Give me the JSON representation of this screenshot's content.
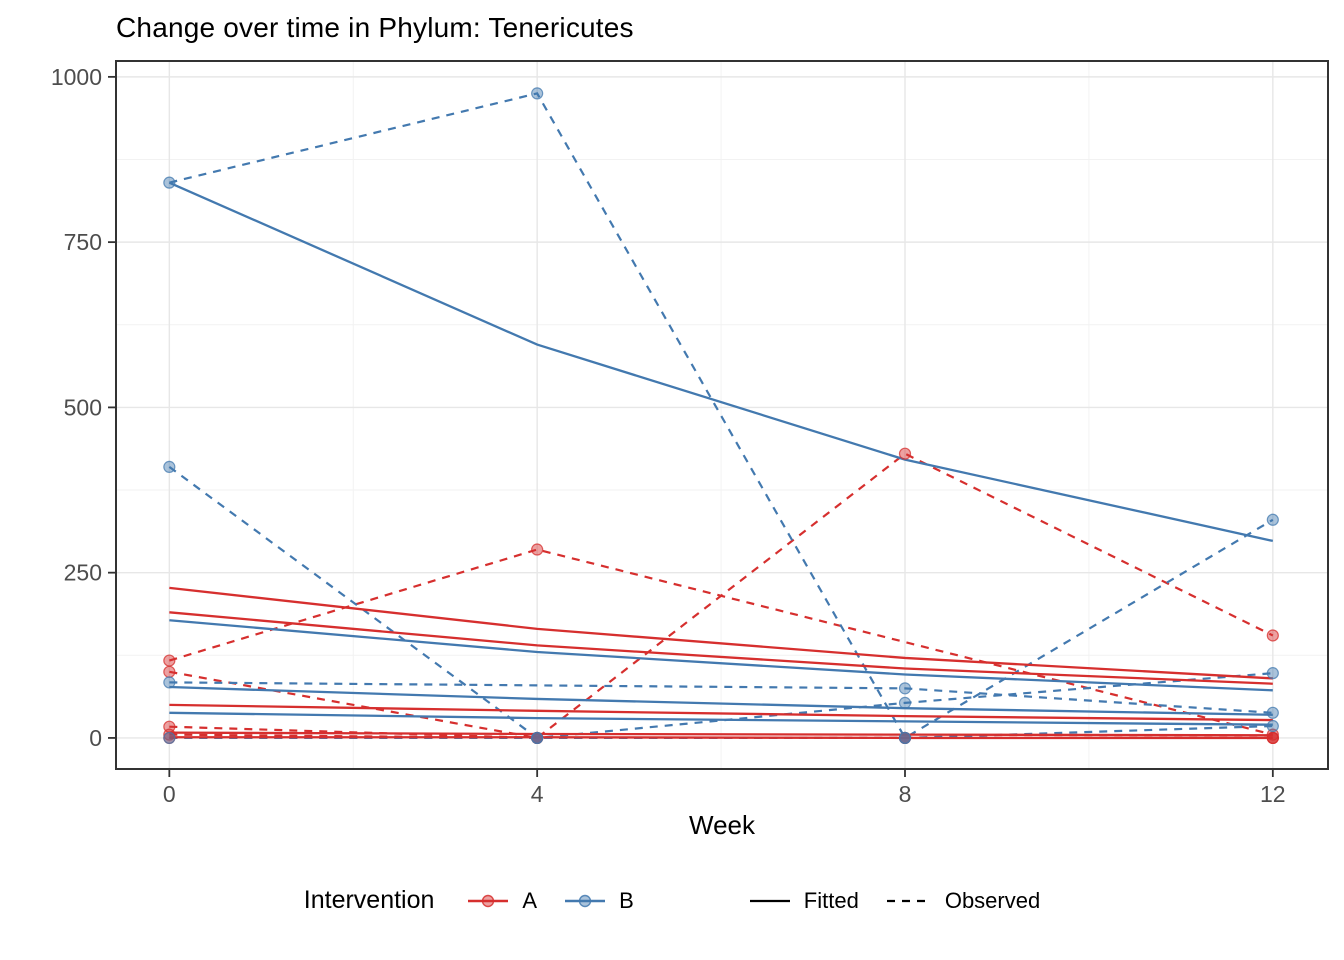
{
  "chart_data": {
    "type": "line",
    "title": "Change over time in Phylum: Tenericutes",
    "xlabel": "Week",
    "ylabel": "",
    "x_tick_values": [
      0,
      4,
      8,
      12
    ],
    "x_tick_labels": [
      "0",
      "4",
      "8",
      "12"
    ],
    "y_tick_values": [
      0,
      250,
      500,
      750,
      1000
    ],
    "y_tick_labels": [
      "0",
      "250",
      "500",
      "750",
      "1000"
    ],
    "x_minor_gridlines": [
      2,
      6,
      10
    ],
    "y_minor_gridlines": [
      125,
      375,
      625,
      875
    ],
    "xlim": [
      -0.58,
      12.6
    ],
    "ylim": [
      -47,
      1024
    ],
    "grid": true,
    "legend_position": "bottom",
    "colors": {
      "A": "#D62F2E",
      "B": "#4379AF",
      "linetype_key": "#000000",
      "major_grid": "#E7E7E7",
      "minor_grid": "#F2F2F2",
      "panel_border": "#333333",
      "axis_text": "#4D4D4D"
    },
    "legend": {
      "title": "Intervention",
      "items": [
        {
          "label": "A",
          "group": "A"
        },
        {
          "label": "B",
          "group": "B"
        }
      ],
      "linetype_items": [
        {
          "label": "Fitted",
          "style": "solid"
        },
        {
          "label": "Observed",
          "style": "dashed"
        }
      ]
    },
    "weeks": [
      0,
      4,
      8,
      12
    ],
    "series": [
      {
        "subject": "A1",
        "group": "A",
        "observed": [
          117,
          285,
          null,
          5
        ],
        "fitted": [
          227,
          165,
          121,
          90
        ]
      },
      {
        "subject": "A2",
        "group": "A",
        "observed": [
          100,
          0,
          430,
          155
        ],
        "fitted": [
          190,
          140,
          105,
          82
        ]
      },
      {
        "subject": "A3",
        "group": "A",
        "observed": [
          17,
          0,
          0,
          0
        ],
        "fitted": [
          50,
          41,
          33,
          27
        ]
      },
      {
        "subject": "A4",
        "group": "A",
        "observed": [
          5,
          0,
          0,
          0
        ],
        "fitted": [
          8,
          6,
          5,
          4
        ]
      },
      {
        "subject": "A5",
        "group": "A",
        "observed": [
          0,
          0,
          0,
          0
        ],
        "fitted": [
          1,
          1,
          0,
          0
        ]
      },
      {
        "subject": "B1",
        "group": "B",
        "observed": [
          840,
          975,
          0,
          330
        ],
        "fitted": [
          840,
          595,
          421,
          298
        ]
      },
      {
        "subject": "B2",
        "group": "B",
        "observed": [
          410,
          0,
          53,
          98
        ],
        "fitted": [
          178,
          130,
          96,
          72
        ]
      },
      {
        "subject": "B3",
        "group": "B",
        "observed": [
          84,
          null,
          75,
          38
        ],
        "fitted": [
          77,
          59,
          45,
          35
        ]
      },
      {
        "subject": "B4",
        "group": "B",
        "observed": [
          0,
          0,
          0,
          18
        ],
        "fitted": [
          38,
          30,
          25,
          20
        ]
      }
    ]
  }
}
